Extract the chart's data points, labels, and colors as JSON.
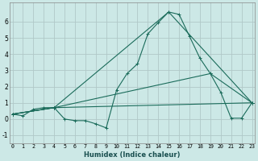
{
  "title": "",
  "xlabel": "Humidex (Indice chaleur)",
  "bg_color": "#cce8e6",
  "grid_color": "#b0c8c8",
  "line_color": "#1a6b5a",
  "marker": "+",
  "series": {
    "curve1": {
      "x": [
        0,
        1,
        2,
        3,
        4,
        5,
        6,
        7,
        8,
        9,
        10,
        11,
        12,
        13,
        14,
        15,
        16,
        17,
        18,
        19,
        20,
        21,
        22,
        23
      ],
      "y": [
        0.3,
        0.2,
        0.6,
        0.7,
        0.7,
        0.0,
        -0.1,
        -0.1,
        -0.3,
        -0.55,
        1.8,
        2.8,
        3.4,
        5.25,
        5.95,
        6.6,
        6.45,
        5.1,
        3.75,
        2.8,
        1.65,
        0.05,
        0.05,
        1.0
      ]
    },
    "curve2": {
      "x": [
        0,
        4,
        23
      ],
      "y": [
        0.3,
        0.7,
        1.0
      ]
    },
    "curve3": {
      "x": [
        0,
        4,
        19,
        23
      ],
      "y": [
        0.3,
        0.7,
        2.8,
        1.0
      ]
    },
    "curve4": {
      "x": [
        0,
        4,
        15,
        23
      ],
      "y": [
        0.3,
        0.7,
        6.6,
        1.0
      ]
    }
  },
  "xlim": [
    -0.3,
    23.3
  ],
  "ylim": [
    -1.5,
    7.2
  ],
  "yticks": [
    -1,
    0,
    1,
    2,
    3,
    4,
    5,
    6
  ],
  "xticks": [
    0,
    1,
    2,
    3,
    4,
    5,
    6,
    7,
    8,
    9,
    10,
    11,
    12,
    13,
    14,
    15,
    16,
    17,
    18,
    19,
    20,
    21,
    22,
    23
  ],
  "xtick_fontsize": 4.8,
  "ytick_fontsize": 5.5,
  "xlabel_fontsize": 6.0
}
